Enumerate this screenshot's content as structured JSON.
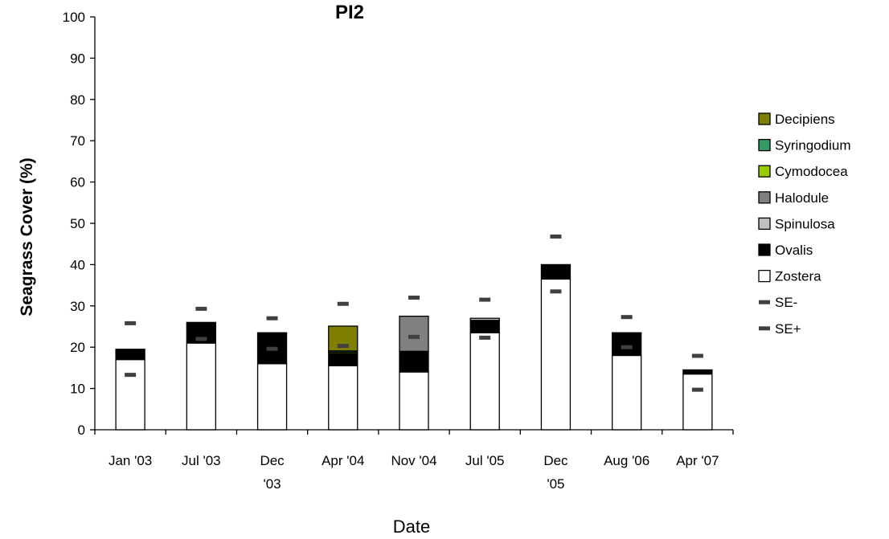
{
  "chart_data": {
    "type": "bar",
    "stacked": true,
    "title": "PI2",
    "xlabel": "Date",
    "ylabel": "Seagrass Cover (%)",
    "ylim": [
      0,
      100
    ],
    "yticks": [
      0,
      10,
      20,
      30,
      40,
      50,
      60,
      70,
      80,
      90,
      100
    ],
    "grid": false,
    "legend_position": "right",
    "categories": [
      [
        "Jan '03"
      ],
      [
        "Jul '03"
      ],
      [
        "Dec",
        "'03"
      ],
      [
        "Apr '04"
      ],
      [
        "Nov '04"
      ],
      [
        "Jul '05"
      ],
      [
        "Dec",
        "'05"
      ],
      [
        "Aug '06"
      ],
      [
        "Apr '07"
      ]
    ],
    "series": [
      {
        "name": "Zostera",
        "color": "#ffffff",
        "values": [
          17,
          21,
          16,
          15.5,
          14,
          23.5,
          36.5,
          18,
          13.5
        ]
      },
      {
        "name": "Ovalis",
        "color": "#000000",
        "values": [
          2.5,
          5,
          7.5,
          3,
          5,
          3,
          3.5,
          5.5,
          1
        ]
      },
      {
        "name": "Spinulosa",
        "color": "#c0c0c0",
        "values": [
          0,
          0,
          0,
          0,
          0,
          0.5,
          0,
          0,
          0
        ]
      },
      {
        "name": "Halodule",
        "color": "#808080",
        "values": [
          0,
          0,
          0,
          0,
          8.5,
          0,
          0,
          0,
          0
        ]
      },
      {
        "name": "Cymodocea",
        "color": "#99cc00",
        "values": [
          0,
          0,
          0,
          0.3,
          0,
          0,
          0,
          0,
          0
        ]
      },
      {
        "name": "Syringodium",
        "color": "#339966",
        "values": [
          0,
          0,
          0,
          0.3,
          0,
          0,
          0,
          0,
          0
        ]
      },
      {
        "name": "Decipiens",
        "color": "#808000",
        "values": [
          0,
          0,
          0,
          6,
          0,
          0,
          0,
          0,
          0
        ]
      }
    ],
    "error_markers": [
      {
        "name": "SE-",
        "color": "#404040",
        "values": [
          13.3,
          22,
          19.6,
          20.3,
          22.5,
          22.3,
          33.5,
          20,
          9.7
        ]
      },
      {
        "name": "SE+",
        "color": "#404040",
        "values": [
          25.8,
          29.3,
          27,
          30.5,
          32,
          31.5,
          46.8,
          27.3,
          17.9
        ]
      }
    ],
    "legend_order": [
      "Decipiens",
      "Syringodium",
      "Cymodocea",
      "Halodule",
      "Spinulosa",
      "Ovalis",
      "Zostera",
      "SE-",
      "SE+"
    ]
  }
}
